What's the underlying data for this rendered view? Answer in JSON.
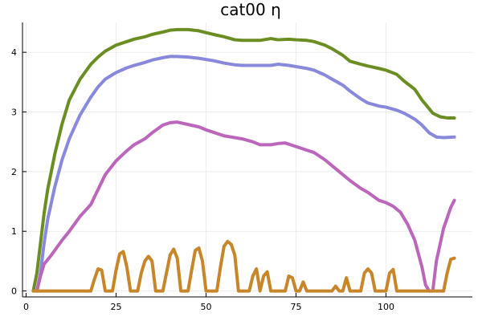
{
  "chart_data": {
    "type": "line",
    "title": "cat00 η",
    "xlabel": "",
    "ylabel": "",
    "xlim": [
      -1,
      124
    ],
    "ylim": [
      -0.1,
      4.5
    ],
    "x_ticks": [
      0,
      25,
      50,
      75,
      100
    ],
    "y_ticks": [
      0,
      1,
      2,
      3,
      4
    ],
    "grid": true,
    "legend": "none",
    "series": [
      {
        "color": "#6b8e23",
        "points": [
          [
            2,
            0
          ],
          [
            3,
            0.3
          ],
          [
            4,
            0.8
          ],
          [
            5,
            1.3
          ],
          [
            6,
            1.7
          ],
          [
            8,
            2.3
          ],
          [
            10,
            2.8
          ],
          [
            12,
            3.2
          ],
          [
            15,
            3.55
          ],
          [
            18,
            3.8
          ],
          [
            20,
            3.92
          ],
          [
            22,
            4.02
          ],
          [
            25,
            4.12
          ],
          [
            28,
            4.18
          ],
          [
            30,
            4.22
          ],
          [
            33,
            4.26
          ],
          [
            35,
            4.3
          ],
          [
            38,
            4.34
          ],
          [
            40,
            4.37
          ],
          [
            42,
            4.38
          ],
          [
            45,
            4.38
          ],
          [
            48,
            4.36
          ],
          [
            50,
            4.33
          ],
          [
            52,
            4.3
          ],
          [
            55,
            4.26
          ],
          [
            58,
            4.21
          ],
          [
            60,
            4.2
          ],
          [
            65,
            4.2
          ],
          [
            68,
            4.23
          ],
          [
            70,
            4.21
          ],
          [
            73,
            4.22
          ],
          [
            75,
            4.21
          ],
          [
            78,
            4.2
          ],
          [
            80,
            4.18
          ],
          [
            83,
            4.12
          ],
          [
            85,
            4.06
          ],
          [
            88,
            3.95
          ],
          [
            90,
            3.85
          ],
          [
            93,
            3.8
          ],
          [
            95,
            3.77
          ],
          [
            98,
            3.73
          ],
          [
            100,
            3.7
          ],
          [
            103,
            3.63
          ],
          [
            105,
            3.52
          ],
          [
            108,
            3.38
          ],
          [
            110,
            3.2
          ],
          [
            113,
            2.98
          ],
          [
            115,
            2.92
          ],
          [
            117,
            2.9
          ],
          [
            119,
            2.9
          ]
        ]
      },
      {
        "color": "#8888dd",
        "points": [
          [
            3,
            0
          ],
          [
            4,
            0.3
          ],
          [
            5,
            0.8
          ],
          [
            6,
            1.2
          ],
          [
            8,
            1.75
          ],
          [
            10,
            2.2
          ],
          [
            12,
            2.55
          ],
          [
            15,
            2.95
          ],
          [
            18,
            3.25
          ],
          [
            20,
            3.42
          ],
          [
            22,
            3.55
          ],
          [
            25,
            3.66
          ],
          [
            28,
            3.74
          ],
          [
            30,
            3.78
          ],
          [
            33,
            3.83
          ],
          [
            35,
            3.87
          ],
          [
            38,
            3.91
          ],
          [
            40,
            3.93
          ],
          [
            42,
            3.93
          ],
          [
            45,
            3.92
          ],
          [
            48,
            3.9
          ],
          [
            50,
            3.88
          ],
          [
            52,
            3.86
          ],
          [
            55,
            3.82
          ],
          [
            58,
            3.79
          ],
          [
            60,
            3.78
          ],
          [
            65,
            3.78
          ],
          [
            68,
            3.78
          ],
          [
            70,
            3.8
          ],
          [
            73,
            3.78
          ],
          [
            75,
            3.76
          ],
          [
            78,
            3.73
          ],
          [
            80,
            3.7
          ],
          [
            83,
            3.62
          ],
          [
            85,
            3.55
          ],
          [
            88,
            3.45
          ],
          [
            90,
            3.35
          ],
          [
            93,
            3.22
          ],
          [
            95,
            3.15
          ],
          [
            98,
            3.1
          ],
          [
            100,
            3.08
          ],
          [
            103,
            3.03
          ],
          [
            105,
            2.98
          ],
          [
            108,
            2.88
          ],
          [
            110,
            2.78
          ],
          [
            112,
            2.65
          ],
          [
            114,
            2.58
          ],
          [
            116,
            2.57
          ],
          [
            119,
            2.58
          ]
        ]
      },
      {
        "color": "#bb66bb",
        "points": [
          [
            3,
            0
          ],
          [
            4,
            0.25
          ],
          [
            5,
            0.45
          ],
          [
            7,
            0.6
          ],
          [
            10,
            0.85
          ],
          [
            12,
            1.0
          ],
          [
            15,
            1.25
          ],
          [
            18,
            1.45
          ],
          [
            20,
            1.7
          ],
          [
            22,
            1.95
          ],
          [
            25,
            2.18
          ],
          [
            28,
            2.35
          ],
          [
            30,
            2.45
          ],
          [
            33,
            2.55
          ],
          [
            35,
            2.65
          ],
          [
            38,
            2.78
          ],
          [
            40,
            2.82
          ],
          [
            42,
            2.83
          ],
          [
            45,
            2.79
          ],
          [
            48,
            2.75
          ],
          [
            50,
            2.7
          ],
          [
            52,
            2.66
          ],
          [
            55,
            2.6
          ],
          [
            58,
            2.57
          ],
          [
            60,
            2.55
          ],
          [
            63,
            2.5
          ],
          [
            65,
            2.45
          ],
          [
            68,
            2.45
          ],
          [
            70,
            2.47
          ],
          [
            72,
            2.48
          ],
          [
            75,
            2.42
          ],
          [
            78,
            2.36
          ],
          [
            80,
            2.32
          ],
          [
            83,
            2.2
          ],
          [
            85,
            2.1
          ],
          [
            88,
            1.95
          ],
          [
            90,
            1.85
          ],
          [
            93,
            1.72
          ],
          [
            95,
            1.65
          ],
          [
            98,
            1.52
          ],
          [
            100,
            1.48
          ],
          [
            102,
            1.42
          ],
          [
            104,
            1.32
          ],
          [
            106,
            1.12
          ],
          [
            108,
            0.85
          ],
          [
            110,
            0.4
          ],
          [
            111,
            0.1
          ],
          [
            112,
            0
          ],
          [
            113,
            0
          ],
          [
            114,
            0.5
          ],
          [
            116,
            1.05
          ],
          [
            118,
            1.4
          ],
          [
            119,
            1.52
          ]
        ]
      },
      {
        "color": "#c8862a",
        "points": [
          [
            2,
            0
          ],
          [
            5,
            0
          ],
          [
            10,
            0
          ],
          [
            15,
            0
          ],
          [
            18,
            0
          ],
          [
            19,
            0.2
          ],
          [
            20,
            0.37
          ],
          [
            21,
            0.35
          ],
          [
            22,
            0
          ],
          [
            24,
            0
          ],
          [
            25,
            0.35
          ],
          [
            26,
            0.62
          ],
          [
            27,
            0.66
          ],
          [
            28,
            0.4
          ],
          [
            29,
            0
          ],
          [
            31,
            0
          ],
          [
            32,
            0.3
          ],
          [
            33,
            0.5
          ],
          [
            34,
            0.58
          ],
          [
            35,
            0.5
          ],
          [
            36,
            0
          ],
          [
            38,
            0
          ],
          [
            39,
            0.3
          ],
          [
            40,
            0.6
          ],
          [
            41,
            0.7
          ],
          [
            42,
            0.55
          ],
          [
            43,
            0
          ],
          [
            45,
            0
          ],
          [
            46,
            0.35
          ],
          [
            47,
            0.68
          ],
          [
            48,
            0.72
          ],
          [
            49,
            0.5
          ],
          [
            50,
            0
          ],
          [
            53,
            0
          ],
          [
            54,
            0.4
          ],
          [
            55,
            0.75
          ],
          [
            56,
            0.83
          ],
          [
            57,
            0.78
          ],
          [
            58,
            0.6
          ],
          [
            59,
            0
          ],
          [
            62,
            0
          ],
          [
            63,
            0.25
          ],
          [
            64,
            0.37
          ],
          [
            65,
            0
          ],
          [
            66,
            0.25
          ],
          [
            67,
            0.32
          ],
          [
            68,
            0
          ],
          [
            72,
            0
          ],
          [
            73,
            0.25
          ],
          [
            74,
            0.22
          ],
          [
            75,
            0
          ],
          [
            76,
            0
          ],
          [
            77,
            0.15
          ],
          [
            78,
            0
          ],
          [
            85,
            0
          ],
          [
            86,
            0.08
          ],
          [
            87,
            0
          ],
          [
            88,
            0
          ],
          [
            89,
            0.22
          ],
          [
            90,
            0
          ],
          [
            93,
            0
          ],
          [
            94,
            0.3
          ],
          [
            95,
            0.37
          ],
          [
            96,
            0.3
          ],
          [
            97,
            0
          ],
          [
            100,
            0
          ],
          [
            101,
            0.3
          ],
          [
            102,
            0.36
          ],
          [
            103,
            0
          ],
          [
            105,
            0
          ],
          [
            106,
            0
          ],
          [
            108,
            0
          ],
          [
            110,
            0
          ],
          [
            112,
            0
          ],
          [
            114,
            0
          ],
          [
            116,
            0
          ],
          [
            117,
            0.3
          ],
          [
            118,
            0.53
          ],
          [
            119,
            0.55
          ]
        ]
      }
    ]
  }
}
